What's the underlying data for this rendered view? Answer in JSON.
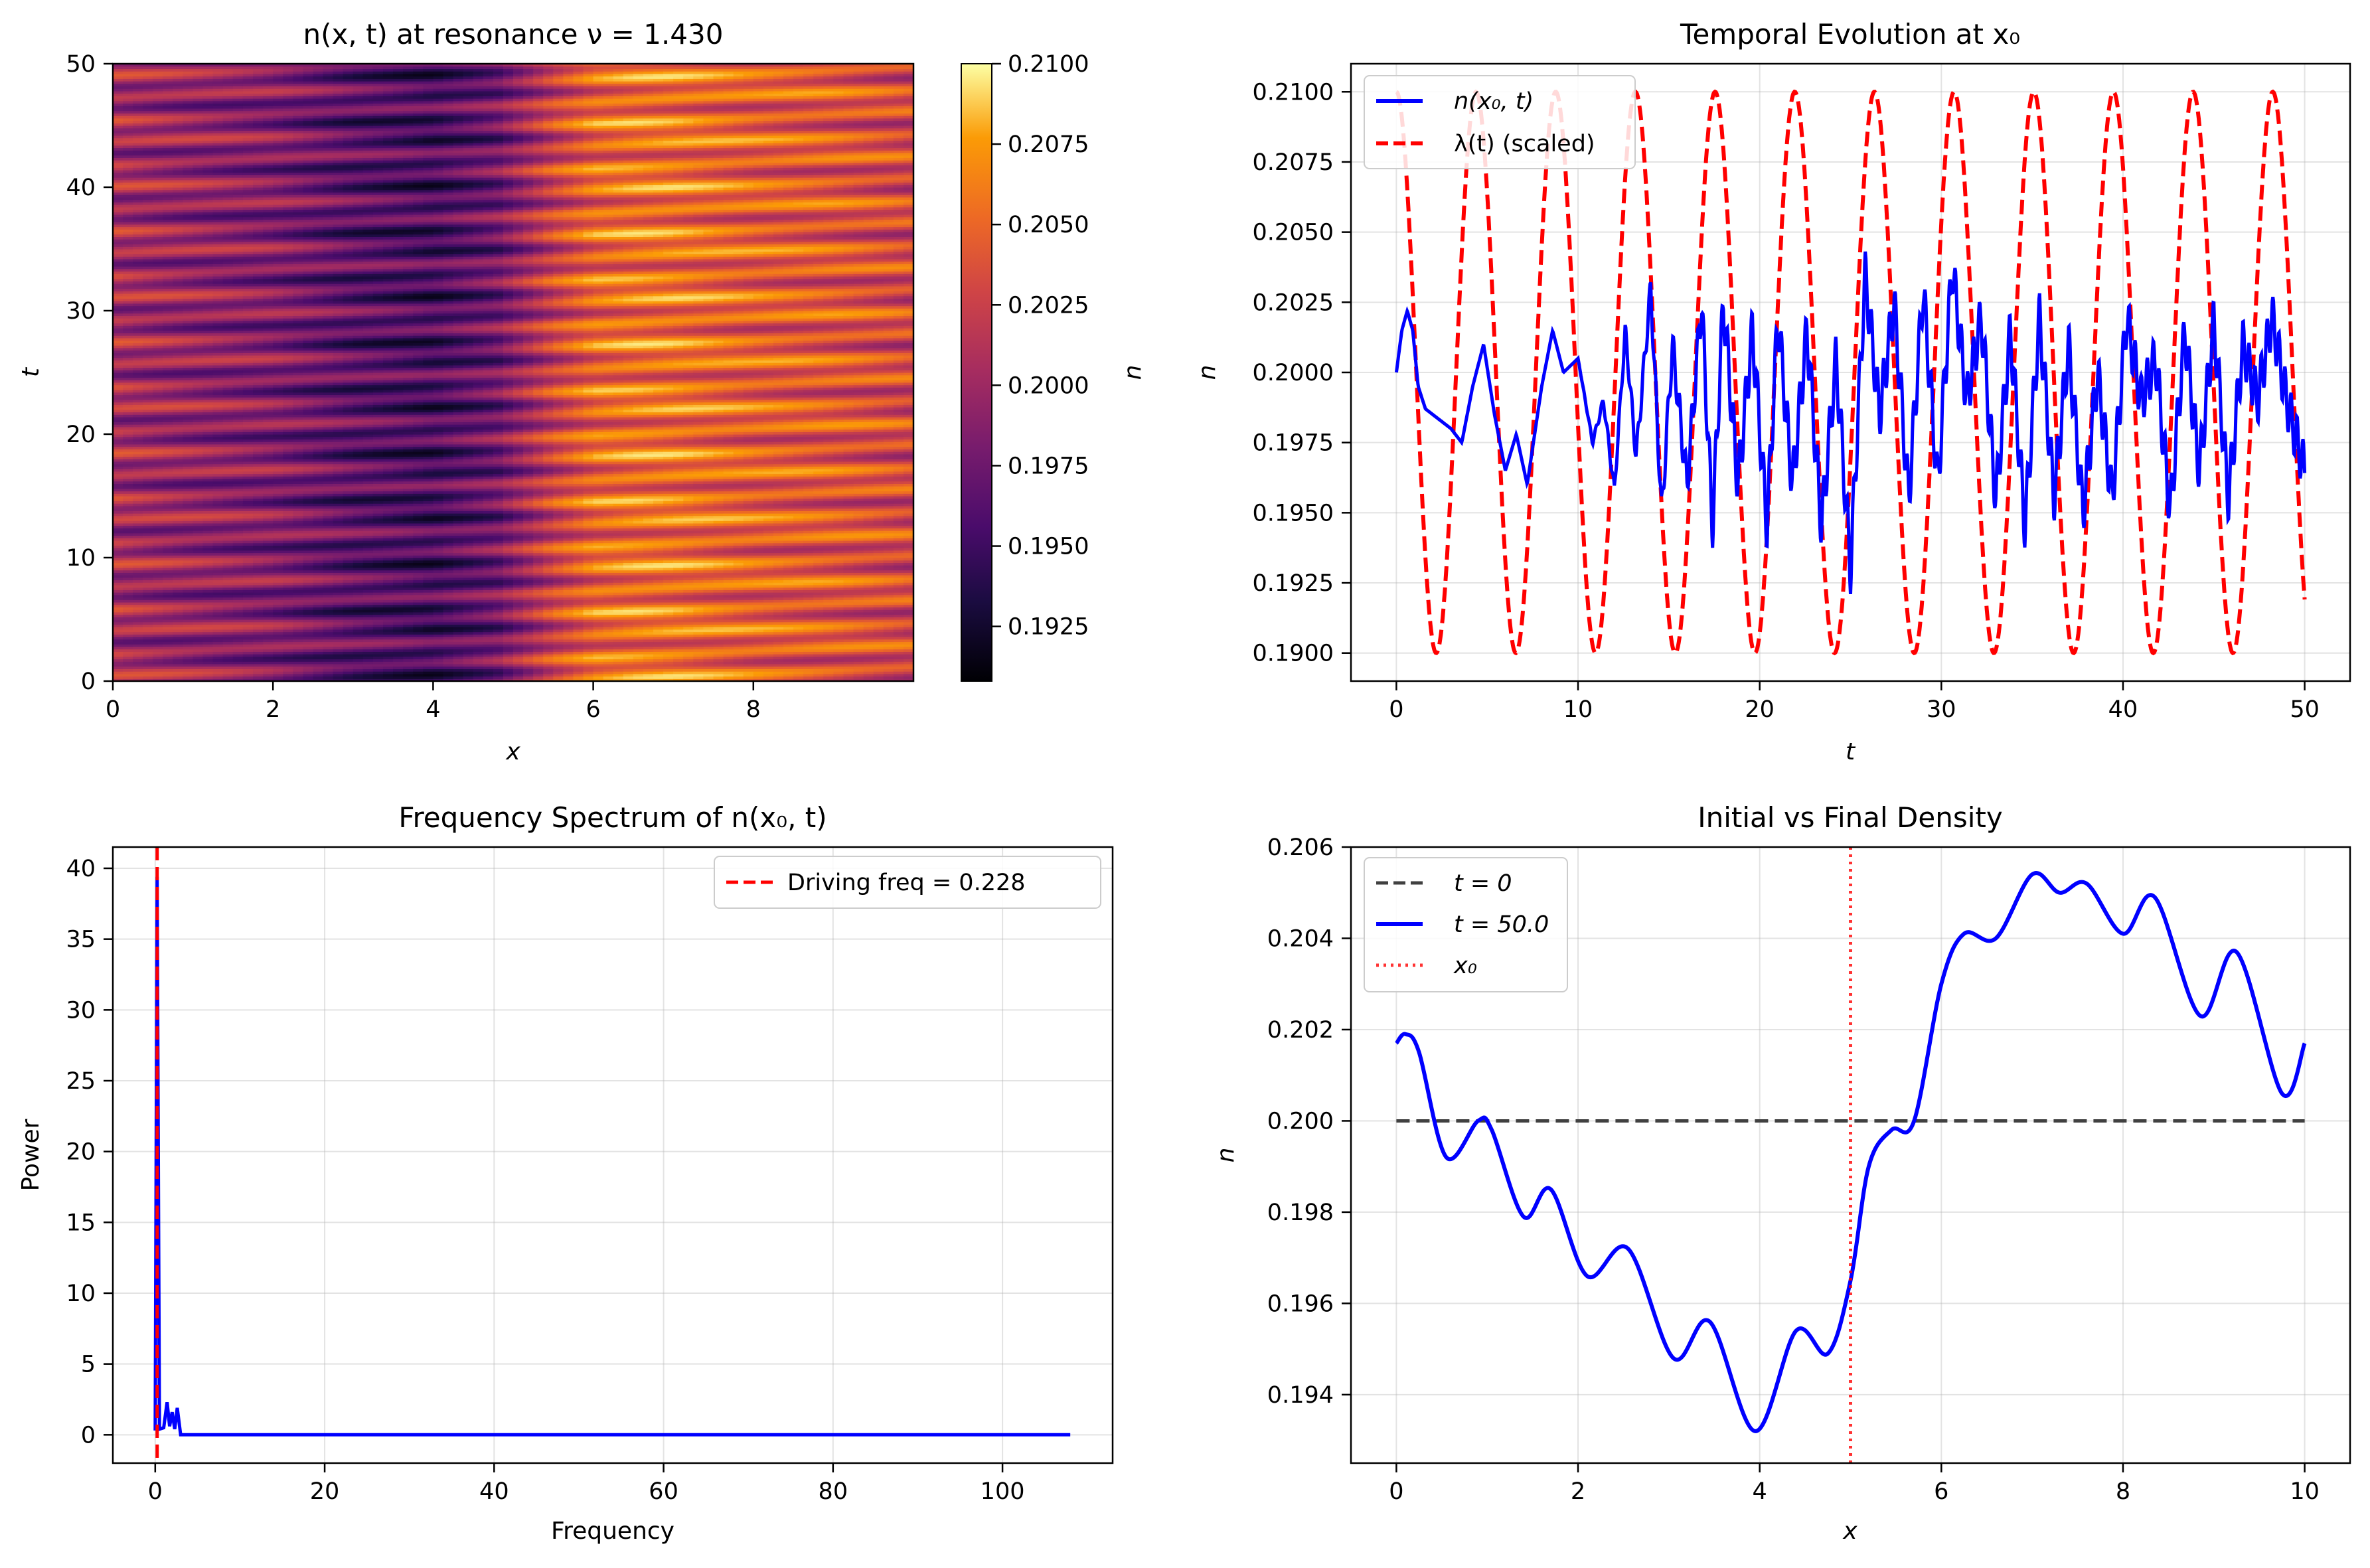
{
  "chart_data": [
    {
      "type": "heatmap",
      "title": "n(x, t) at resonance ν = 1.430",
      "xlabel": "x",
      "ylabel": "t",
      "colorbar_label": "n",
      "colormap": "inferno",
      "xlim": [
        0,
        10
      ],
      "ylim": [
        0,
        50
      ],
      "clim": [
        0.1908,
        0.21
      ],
      "xticks": [
        "0",
        "2",
        "4",
        "6",
        "8"
      ],
      "yticks": [
        "0",
        "10",
        "20",
        "30",
        "40",
        "50"
      ],
      "colorbar_ticks": [
        "0.1925",
        "0.1950",
        "0.1975",
        "0.2000",
        "0.2025",
        "0.2050",
        "0.2075",
        "0.2100"
      ],
      "x_profile": {
        "x": [
          0,
          1,
          2,
          3,
          4,
          4.8,
          5.5,
          6,
          6.5,
          7,
          8,
          9,
          10
        ],
        "n": [
          0.2005,
          0.1995,
          0.1985,
          0.1965,
          0.1955,
          0.1975,
          0.2025,
          0.205,
          0.2055,
          0.2055,
          0.2045,
          0.204,
          0.203
        ]
      },
      "time_stripes": "oscillation bands tilted upward with x, period ≈ 1.8 in t"
    },
    {
      "type": "line",
      "title": "Temporal Evolution at x₀",
      "xlabel": "t",
      "ylabel": "n",
      "xlim": [
        -2.5,
        52.5
      ],
      "ylim": [
        0.189,
        0.211
      ],
      "xticks": [
        "0",
        "10",
        "20",
        "30",
        "40",
        "50"
      ],
      "yticks": [
        "0.1900",
        "0.1925",
        "0.1950",
        "0.1975",
        "0.2000",
        "0.2025",
        "0.2050",
        "0.2075",
        "0.2100"
      ],
      "grid": true,
      "legend_position": "upper-left",
      "series": [
        {
          "name": "n(x₀, t)",
          "color": "#0000ff",
          "style": "solid",
          "t": [
            0,
            0.3,
            0.6,
            0.9,
            1.2,
            1.6,
            2.2,
            3.0,
            3.6,
            4.2,
            4.8,
            5.4,
            6.0,
            6.6,
            7.2,
            8.0,
            8.6,
            9.2,
            10.0,
            10.8,
            11.4,
            12.0,
            12.6,
            13.2,
            14.0,
            14.6,
            15.2,
            16.0,
            16.8,
            17.4,
            18.0,
            18.8,
            19.6,
            20.4,
            21.0,
            21.8,
            22.6,
            23.4,
            24.2,
            25.0,
            25.8,
            26.6,
            27.4,
            28.2,
            29.0,
            29.8,
            30.6,
            31.4,
            32.2,
            33.0,
            33.8,
            34.6,
            35.4,
            36.2,
            37.0,
            37.8,
            38.6,
            39.4,
            40.2,
            41.0,
            41.8,
            42.6,
            43.4,
            44.2,
            45.0,
            45.8,
            46.6,
            47.4,
            48.2,
            49.0,
            49.6,
            50.0
          ],
          "n": [
            0.2,
            0.2015,
            0.2022,
            0.2015,
            0.1995,
            0.1987,
            0.1984,
            0.198,
            0.1975,
            0.1995,
            0.201,
            0.1985,
            0.1965,
            0.1978,
            0.196,
            0.1995,
            0.2015,
            0.2,
            0.2005,
            0.1975,
            0.199,
            0.1958,
            0.2015,
            0.197,
            0.203,
            0.195,
            0.201,
            0.196,
            0.2025,
            0.1945,
            0.2025,
            0.196,
            0.2015,
            0.1945,
            0.202,
            0.196,
            0.2015,
            0.1945,
            0.2005,
            0.193,
            0.2035,
            0.1985,
            0.2025,
            0.1955,
            0.203,
            0.196,
            0.2038,
            0.199,
            0.202,
            0.1955,
            0.2015,
            0.1945,
            0.202,
            0.1955,
            0.201,
            0.195,
            0.2,
            0.1955,
            0.202,
            0.199,
            0.2005,
            0.195,
            0.2015,
            0.1965,
            0.2018,
            0.1955,
            0.201,
            0.199,
            0.202,
            0.199,
            0.1975,
            0.1965
          ]
        },
        {
          "name": "λ(t) (scaled)",
          "color": "#ff0000",
          "style": "dashed",
          "function": "0.2000 + 0.0100·cos(2π·0.228·t)"
        }
      ]
    },
    {
      "type": "line",
      "title": "Frequency Spectrum of n(x₀, t)",
      "xlabel": "Frequency",
      "ylabel": "Power",
      "xlim": [
        -5,
        113
      ],
      "ylim": [
        -2,
        41.5
      ],
      "xticks": [
        "0",
        "20",
        "40",
        "60",
        "80",
        "100"
      ],
      "yticks": [
        "0",
        "5",
        "10",
        "15",
        "20",
        "25",
        "30",
        "35",
        "40"
      ],
      "grid": true,
      "legend_position": "upper-right",
      "series": [
        {
          "name": "Power",
          "color": "#0000ff",
          "x": [
            0,
            0.23,
            0.5,
            1.0,
            1.4,
            1.7,
            2.0,
            2.3,
            2.6,
            3.0,
            5,
            20,
            40,
            60,
            80,
            100,
            108
          ],
          "y": [
            0.3,
            39.4,
            0.4,
            0.5,
            2.3,
            0.6,
            1.6,
            0.4,
            1.9,
            0.0,
            0.0,
            0.0,
            0.0,
            0.0,
            0.0,
            0.0,
            0.0
          ]
        }
      ],
      "vline": {
        "x": 0.228,
        "label": "Driving freq = 0.228",
        "color": "#ff0000",
        "style": "dashed"
      }
    },
    {
      "type": "line",
      "title": "Initial vs Final Density",
      "xlabel": "x",
      "ylabel": "n",
      "xlim": [
        -0.5,
        10.5
      ],
      "ylim": [
        0.1925,
        0.206
      ],
      "xticks": [
        "0",
        "2",
        "4",
        "6",
        "8",
        "10"
      ],
      "yticks": [
        "0.194",
        "0.196",
        "0.198",
        "0.200",
        "0.202",
        "0.204",
        "0.206"
      ],
      "grid": true,
      "legend_position": "upper-left",
      "series": [
        {
          "name": "t = 0",
          "color": "#404040",
          "style": "dashed",
          "x": [
            0,
            10
          ],
          "n": [
            0.2,
            0.2
          ]
        },
        {
          "name": "t = 50.0",
          "color": "#0000ff",
          "style": "solid",
          "x": [
            0,
            0.1,
            0.25,
            0.55,
            0.9,
            1.05,
            1.4,
            1.7,
            2.1,
            2.55,
            3.05,
            3.45,
            3.95,
            4.4,
            4.75,
            5.0,
            5.2,
            5.45,
            5.7,
            6.0,
            6.25,
            6.6,
            7.0,
            7.3,
            7.6,
            8.0,
            8.35,
            8.85,
            9.25,
            9.75,
            10.0
          ],
          "n": [
            0.2017,
            0.2019,
            0.2015,
            0.1992,
            0.2,
            0.1998,
            0.1979,
            0.1985,
            0.1966,
            0.1972,
            0.1948,
            0.1956,
            0.1932,
            0.1954,
            0.1949,
            0.1965,
            0.199,
            0.1998,
            0.2,
            0.203,
            0.2041,
            0.204,
            0.2054,
            0.205,
            0.2052,
            0.2041,
            0.2049,
            0.2023,
            0.2037,
            0.2006,
            0.2017
          ]
        },
        {
          "name": "x₀",
          "color": "#ff0000",
          "style": "dotted",
          "vline_x": 5.0
        }
      ]
    }
  ]
}
